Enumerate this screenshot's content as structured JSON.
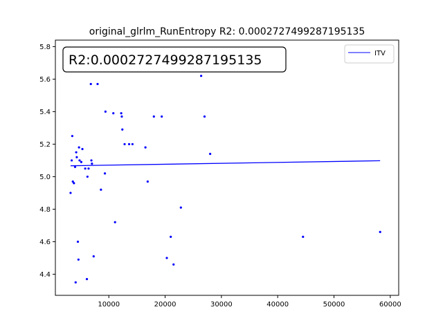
{
  "chart_data": {
    "type": "scatter",
    "title": "original_glrlm_RunEntropy R2: 0.0002727499287195135",
    "annotation": "R2:0.0002727499287195135",
    "xlabel": "",
    "ylabel": "",
    "xlim": [
      500,
      61500
    ],
    "ylim": [
      4.27,
      5.84
    ],
    "x_ticks": [
      10000,
      20000,
      30000,
      40000,
      50000,
      60000
    ],
    "x_tick_labels": [
      "10000",
      "20000",
      "30000",
      "40000",
      "50000",
      "60000"
    ],
    "y_ticks": [
      4.4,
      4.6,
      4.8,
      5.0,
      5.2,
      5.4,
      5.6,
      5.8
    ],
    "y_tick_labels": [
      "4.4",
      "4.6",
      "4.8",
      "5.0",
      "5.2",
      "5.4",
      "5.6",
      "5.8"
    ],
    "grid": false,
    "legend_position": "top-right",
    "colors": {
      "points": "#0000ff",
      "line": "#0000ff"
    },
    "series": [
      {
        "kind": "scatter",
        "points": [
          [
            3200,
            4.9
          ],
          [
            3400,
            5.1
          ],
          [
            3500,
            5.25
          ],
          [
            3600,
            4.97
          ],
          [
            3800,
            4.96
          ],
          [
            4000,
            5.06
          ],
          [
            4100,
            4.35
          ],
          [
            4200,
            5.15
          ],
          [
            4300,
            5.12
          ],
          [
            4500,
            4.6
          ],
          [
            4600,
            4.49
          ],
          [
            4700,
            5.18
          ],
          [
            4800,
            5.1
          ],
          [
            5100,
            5.09
          ],
          [
            5300,
            5.17
          ],
          [
            5800,
            5.05
          ],
          [
            6100,
            4.37
          ],
          [
            6200,
            5.0
          ],
          [
            6400,
            5.05
          ],
          [
            6800,
            5.57
          ],
          [
            6900,
            5.1
          ],
          [
            7000,
            5.08
          ],
          [
            7300,
            4.51
          ],
          [
            8000,
            5.57
          ],
          [
            8600,
            4.92
          ],
          [
            9300,
            5.02
          ],
          [
            9400,
            5.4
          ],
          [
            10800,
            5.39
          ],
          [
            11100,
            4.72
          ],
          [
            12200,
            5.39
          ],
          [
            12300,
            5.37
          ],
          [
            12400,
            5.29
          ],
          [
            12800,
            5.2
          ],
          [
            13600,
            5.2
          ],
          [
            14200,
            5.2
          ],
          [
            16500,
            5.18
          ],
          [
            16900,
            4.97
          ],
          [
            18000,
            5.37
          ],
          [
            19400,
            5.37
          ],
          [
            20300,
            4.5
          ],
          [
            21000,
            4.63
          ],
          [
            21500,
            4.46
          ],
          [
            22800,
            4.81
          ],
          [
            26400,
            5.62
          ],
          [
            26500,
            5.66
          ],
          [
            27000,
            5.37
          ],
          [
            28000,
            5.14
          ],
          [
            44500,
            4.63
          ],
          [
            58200,
            4.66
          ]
        ]
      },
      {
        "kind": "line",
        "name": "ITV",
        "points": [
          [
            3200,
            5.067
          ],
          [
            58200,
            5.098
          ]
        ]
      }
    ]
  }
}
